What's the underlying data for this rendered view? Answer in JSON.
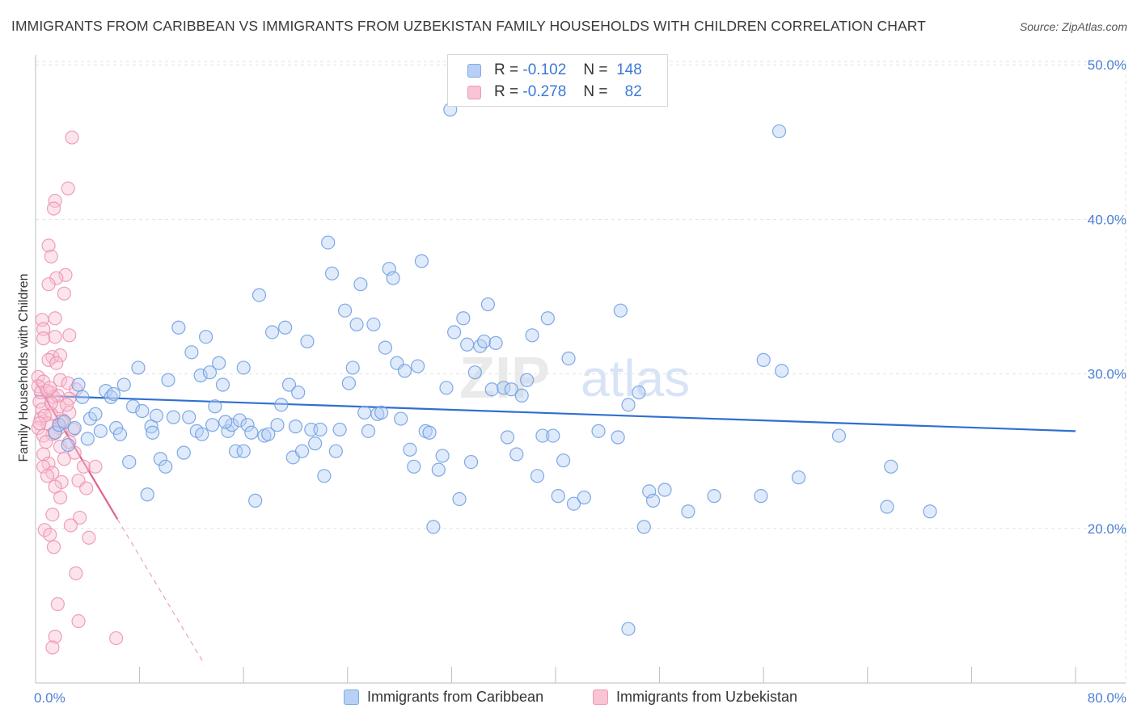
{
  "header": {
    "title": "IMMIGRANTS FROM CARIBBEAN VS IMMIGRANTS FROM UZBEKISTAN FAMILY HOUSEHOLDS WITH CHILDREN CORRELATION CHART",
    "source": "Source: ZipAtlas.com"
  },
  "legend": {
    "rows": [
      {
        "r_label": "R =",
        "r_value": "-0.102",
        "n_label": "N =",
        "n_value": "148"
      },
      {
        "r_label": "R =",
        "r_value": "-0.278",
        "n_label": "N =",
        "n_value": "82"
      }
    ]
  },
  "bottom_legend": {
    "series_1": "Immigrants from Caribbean",
    "series_2": "Immigrants from Uzbekistan"
  },
  "watermark": {
    "zip": "ZIP",
    "atlas": "atlas"
  },
  "colors": {
    "caribbean_fill": "#b8d0f4",
    "caribbean_stroke": "#6a9be0",
    "caribbean_line": "#2f6fd0",
    "uzbekistan_fill": "#f9c4d4",
    "uzbekistan_stroke": "#ec8fae",
    "uzbekistan_line": "#e0638f",
    "tick_label": "#4a7fd4",
    "grid": "#e3e3e3"
  },
  "chart_data": {
    "type": "scatter",
    "title": "IMMIGRANTS FROM CARIBBEAN VS IMMIGRANTS FROM UZBEKISTAN FAMILY HOUSEHOLDS WITH CHILDREN CORRELATION CHART",
    "xlabel": "",
    "ylabel": "Family Households with Children",
    "xlim": [
      0,
      80
    ],
    "ylim": [
      10,
      52
    ],
    "x_tick_labels": [
      "0.0%",
      "80.0%"
    ],
    "y_ticks": [
      20,
      30,
      40,
      50
    ],
    "y_tick_labels": [
      "20.0%",
      "30.0%",
      "40.0%",
      "50.0%"
    ],
    "grid": true,
    "legend_placement": "top-center",
    "series": [
      {
        "name": "Immigrants from Caribbean",
        "r": -0.102,
        "n": 148,
        "trend": {
          "x": [
            0,
            80
          ],
          "y": [
            28.6,
            26.3
          ]
        },
        "points": [
          [
            1.5,
            26.2
          ],
          [
            1.8,
            26.7
          ],
          [
            2.2,
            26.9
          ],
          [
            2.5,
            25.4
          ],
          [
            3.0,
            26.5
          ],
          [
            3.3,
            29.3
          ],
          [
            3.6,
            28.5
          ],
          [
            4.0,
            25.8
          ],
          [
            4.2,
            27.1
          ],
          [
            4.6,
            27.4
          ],
          [
            5.0,
            26.3
          ],
          [
            5.4,
            28.9
          ],
          [
            5.8,
            28.5
          ],
          [
            6.2,
            26.5
          ],
          [
            6.5,
            26.1
          ],
          [
            6.8,
            29.3
          ],
          [
            7.2,
            24.3
          ],
          [
            7.5,
            27.9
          ],
          [
            7.9,
            30.4
          ],
          [
            8.2,
            27.6
          ],
          [
            8.6,
            22.2
          ],
          [
            8.9,
            26.6
          ],
          [
            9.3,
            27.3
          ],
          [
            9.6,
            24.5
          ],
          [
            10.0,
            24.0
          ],
          [
            10.2,
            29.6
          ],
          [
            10.6,
            27.2
          ],
          [
            11.0,
            33.0
          ],
          [
            11.4,
            24.9
          ],
          [
            11.8,
            27.2
          ],
          [
            12.0,
            31.4
          ],
          [
            12.4,
            26.3
          ],
          [
            12.7,
            29.9
          ],
          [
            13.1,
            32.4
          ],
          [
            13.4,
            30.1
          ],
          [
            13.8,
            27.9
          ],
          [
            14.1,
            30.7
          ],
          [
            14.4,
            29.3
          ],
          [
            14.8,
            26.3
          ],
          [
            15.1,
            26.7
          ],
          [
            15.4,
            25.0
          ],
          [
            15.7,
            27.0
          ],
          [
            16.0,
            30.4
          ],
          [
            16.3,
            26.7
          ],
          [
            16.6,
            26.2
          ],
          [
            16.9,
            21.8
          ],
          [
            17.2,
            35.1
          ],
          [
            17.6,
            26.0
          ],
          [
            17.9,
            26.1
          ],
          [
            18.2,
            32.7
          ],
          [
            18.6,
            26.7
          ],
          [
            18.9,
            28.0
          ],
          [
            19.2,
            33.0
          ],
          [
            19.5,
            29.3
          ],
          [
            19.8,
            24.6
          ],
          [
            20.2,
            28.8
          ],
          [
            20.5,
            25.0
          ],
          [
            20.9,
            32.1
          ],
          [
            21.2,
            26.4
          ],
          [
            21.5,
            25.5
          ],
          [
            21.9,
            26.4
          ],
          [
            22.2,
            23.4
          ],
          [
            22.5,
            38.5
          ],
          [
            22.8,
            36.5
          ],
          [
            23.1,
            25.0
          ],
          [
            23.4,
            26.4
          ],
          [
            23.8,
            34.1
          ],
          [
            24.1,
            29.4
          ],
          [
            24.4,
            30.4
          ],
          [
            24.7,
            33.2
          ],
          [
            25.0,
            35.8
          ],
          [
            25.3,
            27.5
          ],
          [
            25.6,
            26.3
          ],
          [
            26.0,
            33.2
          ],
          [
            26.3,
            27.4
          ],
          [
            26.6,
            27.5
          ],
          [
            26.9,
            31.7
          ],
          [
            27.2,
            36.8
          ],
          [
            27.5,
            36.2
          ],
          [
            27.8,
            30.7
          ],
          [
            28.1,
            27.1
          ],
          [
            28.4,
            30.2
          ],
          [
            28.8,
            25.1
          ],
          [
            29.1,
            24.0
          ],
          [
            29.4,
            30.5
          ],
          [
            29.7,
            37.3
          ],
          [
            30.0,
            26.3
          ],
          [
            30.3,
            26.2
          ],
          [
            30.6,
            20.1
          ],
          [
            31.0,
            23.8
          ],
          [
            31.3,
            24.7
          ],
          [
            31.6,
            29.1
          ],
          [
            31.9,
            47.1
          ],
          [
            32.2,
            32.7
          ],
          [
            32.6,
            21.9
          ],
          [
            32.9,
            33.6
          ],
          [
            33.2,
            31.9
          ],
          [
            33.5,
            24.3
          ],
          [
            33.8,
            30.1
          ],
          [
            34.2,
            31.8
          ],
          [
            34.5,
            32.1
          ],
          [
            34.8,
            34.5
          ],
          [
            35.1,
            29.0
          ],
          [
            35.4,
            32.0
          ],
          [
            36.0,
            29.1
          ],
          [
            36.3,
            25.9
          ],
          [
            36.6,
            29.0
          ],
          [
            37.0,
            24.8
          ],
          [
            37.4,
            28.6
          ],
          [
            37.8,
            29.6
          ],
          [
            38.2,
            32.5
          ],
          [
            38.6,
            23.4
          ],
          [
            39.0,
            26.0
          ],
          [
            39.4,
            33.6
          ],
          [
            39.8,
            26.0
          ],
          [
            40.2,
            22.1
          ],
          [
            40.6,
            24.4
          ],
          [
            41.0,
            31.0
          ],
          [
            41.4,
            21.6
          ],
          [
            42.2,
            22.0
          ],
          [
            43.3,
            26.3
          ],
          [
            44.8,
            25.9
          ],
          [
            45.0,
            34.1
          ],
          [
            45.6,
            28.0
          ],
          [
            46.4,
            28.8
          ],
          [
            46.8,
            20.1
          ],
          [
            47.2,
            22.4
          ],
          [
            47.5,
            21.8
          ],
          [
            48.4,
            22.5
          ],
          [
            50.2,
            21.1
          ],
          [
            52.2,
            22.1
          ],
          [
            55.8,
            22.1
          ],
          [
            56.0,
            30.9
          ],
          [
            57.2,
            45.7
          ],
          [
            57.4,
            30.2
          ],
          [
            58.7,
            23.3
          ],
          [
            61.8,
            26.0
          ],
          [
            65.5,
            21.4
          ],
          [
            65.8,
            24.0
          ],
          [
            68.8,
            21.1
          ],
          [
            45.6,
            13.5
          ],
          [
            16.0,
            25.0
          ],
          [
            20.0,
            26.6
          ],
          [
            6.0,
            28.7
          ],
          [
            9.0,
            26.2
          ],
          [
            12.8,
            26.1
          ],
          [
            13.6,
            26.7
          ],
          [
            14.6,
            26.9
          ]
        ]
      },
      {
        "name": "Immigrants from Uzbekistan",
        "r": -0.278,
        "n": 82,
        "trend": {
          "x": [
            0,
            6.3
          ],
          "y": [
            29.5,
            20.6
          ]
        },
        "trend_dashed": {
          "x": [
            6.3,
            13.0
          ],
          "y": [
            20.6,
            11.2
          ]
        },
        "points": [
          [
            2.8,
            45.3
          ],
          [
            2.5,
            42.0
          ],
          [
            1.5,
            41.2
          ],
          [
            1.4,
            40.7
          ],
          [
            1.0,
            38.3
          ],
          [
            1.2,
            37.6
          ],
          [
            2.3,
            36.4
          ],
          [
            1.6,
            36.2
          ],
          [
            1.0,
            35.8
          ],
          [
            2.2,
            35.2
          ],
          [
            0.5,
            33.5
          ],
          [
            1.5,
            33.6
          ],
          [
            0.6,
            32.9
          ],
          [
            1.5,
            32.4
          ],
          [
            0.6,
            32.3
          ],
          [
            2.6,
            32.5
          ],
          [
            1.3,
            31.1
          ],
          [
            1.9,
            31.2
          ],
          [
            1.0,
            30.9
          ],
          [
            1.6,
            30.7
          ],
          [
            0.2,
            29.8
          ],
          [
            1.9,
            29.6
          ],
          [
            2.5,
            29.4
          ],
          [
            0.6,
            29.5
          ],
          [
            3.1,
            29.0
          ],
          [
            0.2,
            29.2
          ],
          [
            1.2,
            28.8
          ],
          [
            1.4,
            28.5
          ],
          [
            0.3,
            28.2
          ],
          [
            1.8,
            27.9
          ],
          [
            2.6,
            28.4
          ],
          [
            0.5,
            27.7
          ],
          [
            1.2,
            27.4
          ],
          [
            0.4,
            27.1
          ],
          [
            2.6,
            27.5
          ],
          [
            0.9,
            26.8
          ],
          [
            1.8,
            26.5
          ],
          [
            0.2,
            26.5
          ],
          [
            1.3,
            26.1
          ],
          [
            0.6,
            26.0
          ],
          [
            1.9,
            25.3
          ],
          [
            2.6,
            25.6
          ],
          [
            0.6,
            24.8
          ],
          [
            3.0,
            24.9
          ],
          [
            1.0,
            24.2
          ],
          [
            0.6,
            24.0
          ],
          [
            2.2,
            24.5
          ],
          [
            1.3,
            23.6
          ],
          [
            0.9,
            23.4
          ],
          [
            3.3,
            23.1
          ],
          [
            2.0,
            23.0
          ],
          [
            1.5,
            22.7
          ],
          [
            3.9,
            22.6
          ],
          [
            1.9,
            22.0
          ],
          [
            1.3,
            20.9
          ],
          [
            3.4,
            20.7
          ],
          [
            2.7,
            20.2
          ],
          [
            0.7,
            19.9
          ],
          [
            1.1,
            19.6
          ],
          [
            4.1,
            19.4
          ],
          [
            1.4,
            18.8
          ],
          [
            3.1,
            17.1
          ],
          [
            1.7,
            15.1
          ],
          [
            3.3,
            14.0
          ],
          [
            1.5,
            13.0
          ],
          [
            6.2,
            12.9
          ],
          [
            1.3,
            12.3
          ],
          [
            0.8,
            25.6
          ],
          [
            2.0,
            26.9
          ],
          [
            0.4,
            28.8
          ],
          [
            1.7,
            28.6
          ],
          [
            3.7,
            24.0
          ],
          [
            0.9,
            28.9
          ],
          [
            1.2,
            28.1
          ],
          [
            2.1,
            27.0
          ],
          [
            0.7,
            27.3
          ],
          [
            2.9,
            26.4
          ],
          [
            1.5,
            26.2
          ],
          [
            0.3,
            26.8
          ],
          [
            4.6,
            24.0
          ],
          [
            1.1,
            29.1
          ],
          [
            2.4,
            28.0
          ]
        ]
      }
    ]
  }
}
